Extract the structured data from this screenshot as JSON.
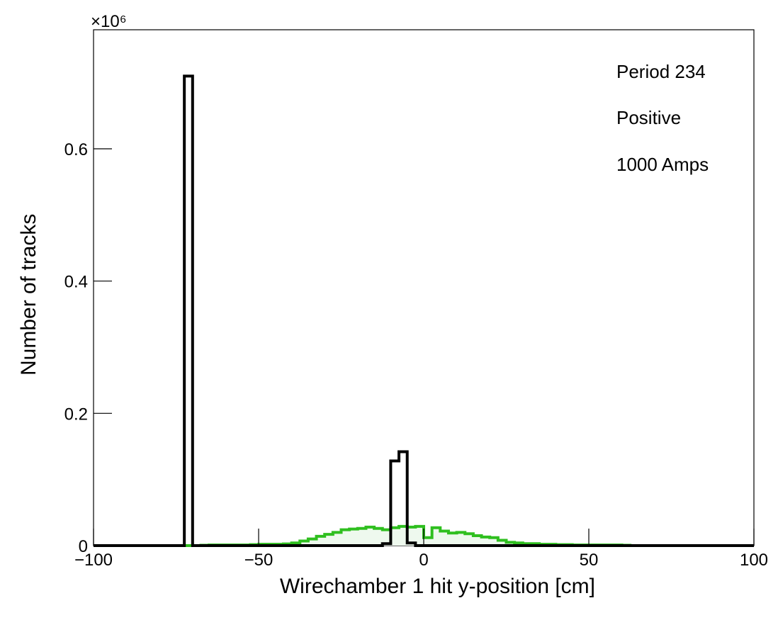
{
  "chart_data": {
    "type": "histogram",
    "xlabel": "Wirechamber 1 hit y-position [cm]",
    "ylabel": "Number of tracks",
    "y_scale_label": "×10⁶",
    "xlim": [
      -100,
      100
    ],
    "ylim": [
      0,
      0.78
    ],
    "x_ticks": [
      -100,
      -50,
      0,
      50,
      100
    ],
    "x_tick_labels": [
      "−100",
      "−50",
      "0",
      "50",
      "100"
    ],
    "y_ticks": [
      0,
      0.2,
      0.4,
      0.6
    ],
    "y_tick_labels": [
      "0",
      "0.2",
      "0.4",
      "0.6"
    ],
    "annotations": [
      "Period 234",
      "Positive",
      "1000 Amps"
    ],
    "bin_edges": [
      -100,
      -97.5,
      -95,
      -92.5,
      -90,
      -87.5,
      -85,
      -82.5,
      -80,
      -77.5,
      -75,
      -72.5,
      -70,
      -67.5,
      -65,
      -62.5,
      -60,
      -57.5,
      -55,
      -52.5,
      -50,
      -47.5,
      -45,
      -42.5,
      -40,
      -37.5,
      -35,
      -32.5,
      -30,
      -27.5,
      -25,
      -22.5,
      -20,
      -17.5,
      -15,
      -12.5,
      -10,
      -7.5,
      -5,
      -2.5,
      0,
      2.5,
      5,
      7.5,
      10,
      12.5,
      15,
      17.5,
      20,
      22.5,
      25,
      27.5,
      30,
      32.5,
      35,
      37.5,
      40,
      42.5,
      45,
      47.5,
      50,
      52.5,
      55,
      57.5,
      60,
      62.5,
      65,
      67.5,
      70,
      72.5,
      75,
      77.5,
      80,
      82.5,
      85,
      87.5,
      90,
      92.5,
      95,
      97.5,
      100
    ],
    "series": [
      {
        "color": "#000000",
        "fill": "none",
        "values": [
          0,
          0,
          0,
          0,
          0,
          0,
          0,
          0,
          0,
          0,
          0,
          0.71,
          0,
          0,
          0,
          0,
          0,
          0,
          0,
          0,
          0,
          0,
          0,
          0,
          0,
          0,
          0,
          0,
          0,
          0,
          0,
          0,
          0,
          0,
          0,
          0.003,
          0.128,
          0.142,
          0.004,
          0,
          0,
          0,
          0,
          0,
          0,
          0,
          0,
          0,
          0,
          0,
          0,
          0,
          0,
          0,
          0,
          0,
          0,
          0,
          0,
          0,
          0,
          0,
          0,
          0,
          0,
          0,
          0,
          0,
          0,
          0,
          0,
          0,
          0,
          0,
          0,
          0,
          0,
          0,
          0,
          0
        ]
      },
      {
        "color": "#2fbf1f",
        "fill": "#eef9ee",
        "values": [
          0,
          0,
          0,
          0,
          0,
          0,
          0,
          0,
          0,
          0,
          0,
          0,
          0,
          0.0005,
          0.001,
          0.001,
          0.001,
          0.001,
          0.001,
          0.0015,
          0.002,
          0.002,
          0.002,
          0.0025,
          0.004,
          0.007,
          0.01,
          0.014,
          0.017,
          0.02,
          0.024,
          0.025,
          0.026,
          0.028,
          0.026,
          0.024,
          0.027,
          0.029,
          0.028,
          0.029,
          0.012,
          0.027,
          0.022,
          0.019,
          0.02,
          0.018,
          0.015,
          0.013,
          0.012,
          0.008,
          0.005,
          0.004,
          0.003,
          0.003,
          0.002,
          0.002,
          0.0015,
          0.0015,
          0.001,
          0.001,
          0.001,
          0.001,
          0.001,
          0.001,
          0.0005,
          0,
          0,
          0,
          0,
          0,
          0,
          0,
          0,
          0,
          0,
          0,
          0,
          0,
          0,
          0
        ]
      }
    ]
  }
}
